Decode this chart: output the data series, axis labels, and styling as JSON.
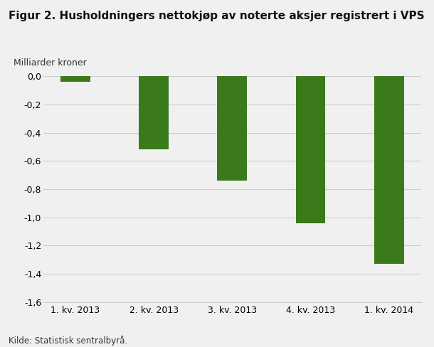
{
  "title": "Figur 2. Husholdningers nettokjøp av noterte aksjer registrert i VPS",
  "ylabel": "Milliarder kroner",
  "source": "Kilde: Statistisk sentralbyrå.",
  "categories": [
    "1. kv. 2013",
    "2. kv. 2013",
    "3. kv. 2013",
    "4. kv. 2013",
    "1. kv. 2014"
  ],
  "values": [
    -0.04,
    -0.52,
    -0.74,
    -1.04,
    -1.33
  ],
  "bar_color": "#3a7a1a",
  "ylim": [
    -1.6,
    0.0
  ],
  "yticks": [
    0.0,
    -0.2,
    -0.4,
    -0.6,
    -0.8,
    -1.0,
    -1.2,
    -1.4,
    -1.6
  ],
  "background_color": "#f0f0f0",
  "grid_color": "#cccccc",
  "title_fontsize": 11,
  "label_fontsize": 9,
  "tick_fontsize": 9,
  "source_fontsize": 8.5,
  "bar_width": 0.38
}
